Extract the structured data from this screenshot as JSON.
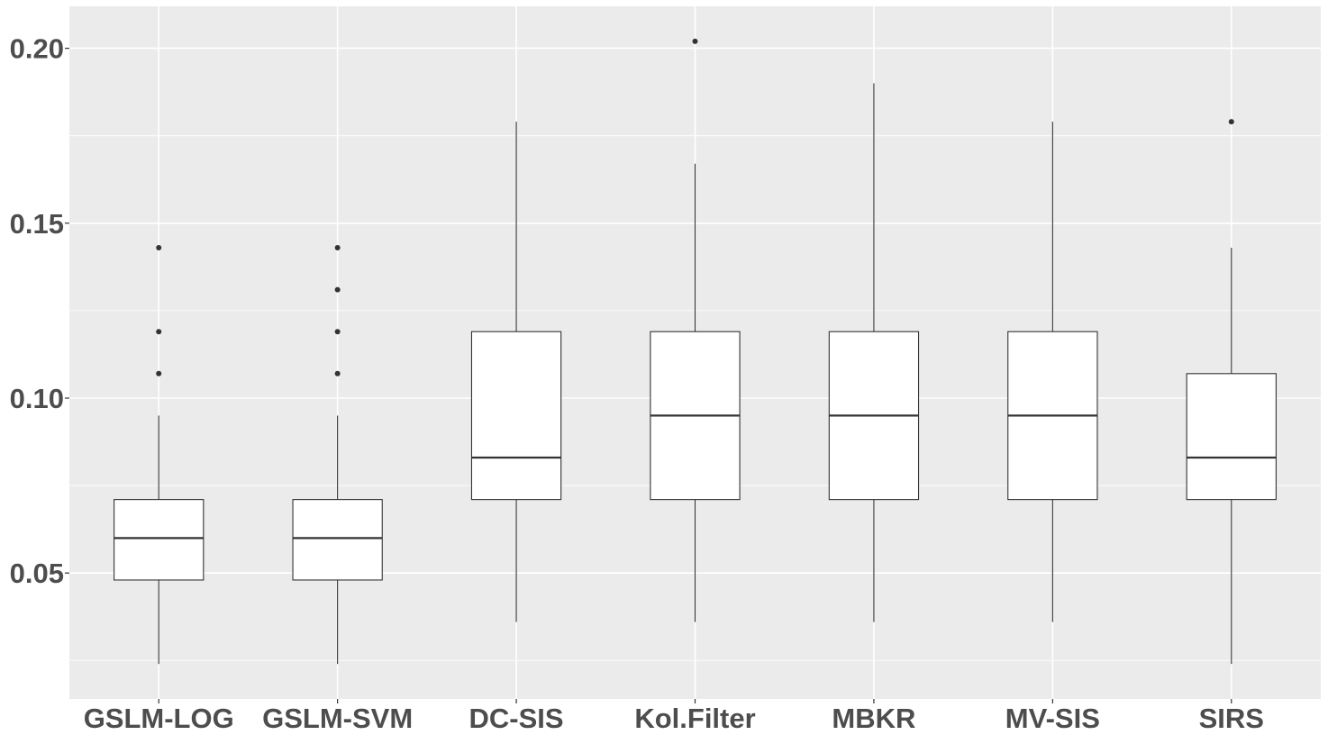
{
  "chart_data": {
    "type": "boxplot",
    "title": "",
    "xlabel": "",
    "ylabel": "",
    "ylim": [
      0.014,
      0.212
    ],
    "y_ticks": [
      0.05,
      0.1,
      0.15,
      0.2
    ],
    "y_tick_labels": [
      "0.05",
      "0.10",
      "0.15",
      "0.20"
    ],
    "y_minor_ticks": [
      0.025,
      0.075,
      0.125,
      0.175
    ],
    "grid": true,
    "background_color": "#ebebeb",
    "grid_color": "#ffffff",
    "box_fill": "#ffffff",
    "line_color": "#333333",
    "categories": [
      "GSLM-LOG",
      "GSLM-SVM",
      "DC-SIS",
      "Kol.Filter",
      "MBKR",
      "MV-SIS",
      "SIRS"
    ],
    "boxes": [
      {
        "name": "GSLM-LOG",
        "whisker_low": 0.024,
        "q1": 0.048,
        "median": 0.06,
        "q3": 0.071,
        "whisker_high": 0.095,
        "outliers": [
          0.107,
          0.119,
          0.143
        ]
      },
      {
        "name": "GSLM-SVM",
        "whisker_low": 0.024,
        "q1": 0.048,
        "median": 0.06,
        "q3": 0.071,
        "whisker_high": 0.095,
        "outliers": [
          0.107,
          0.119,
          0.131,
          0.143
        ]
      },
      {
        "name": "DC-SIS",
        "whisker_low": 0.036,
        "q1": 0.071,
        "median": 0.083,
        "q3": 0.119,
        "whisker_high": 0.179,
        "outliers": []
      },
      {
        "name": "Kol.Filter",
        "whisker_low": 0.036,
        "q1": 0.071,
        "median": 0.095,
        "q3": 0.119,
        "whisker_high": 0.167,
        "outliers": [
          0.202
        ]
      },
      {
        "name": "MBKR",
        "whisker_low": 0.036,
        "q1": 0.071,
        "median": 0.095,
        "q3": 0.119,
        "whisker_high": 0.19,
        "outliers": []
      },
      {
        "name": "MV-SIS",
        "whisker_low": 0.036,
        "q1": 0.071,
        "median": 0.095,
        "q3": 0.119,
        "whisker_high": 0.179,
        "outliers": []
      },
      {
        "name": "SIRS",
        "whisker_low": 0.024,
        "q1": 0.071,
        "median": 0.083,
        "q3": 0.107,
        "whisker_high": 0.143,
        "outliers": [
          0.179
        ]
      }
    ]
  }
}
